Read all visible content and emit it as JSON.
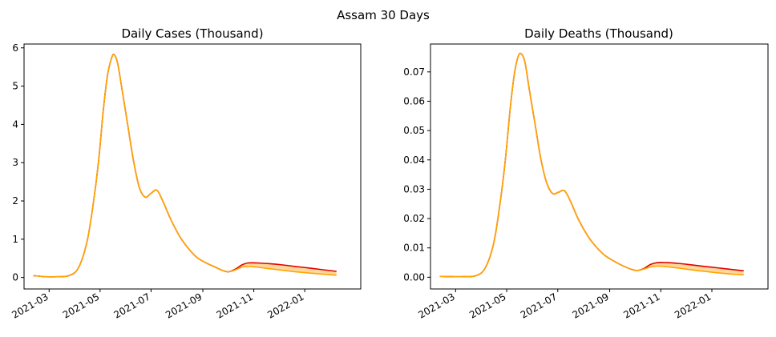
{
  "figure": {
    "suptitle": "Assam 30 Days"
  },
  "chart_data": [
    {
      "type": "line",
      "title": "Daily Cases (Thousand)",
      "xlabel": "",
      "ylabel": "",
      "x_type": "date",
      "xlim": [
        "2021-01-30",
        "2022-03-09"
      ],
      "ylim": [
        -0.3,
        6.1
      ],
      "yticks": [
        0,
        1,
        2,
        3,
        4,
        5,
        6
      ],
      "ytick_labels": [
        "0",
        "1",
        "2",
        "3",
        "4",
        "5",
        "6"
      ],
      "xticks": [
        "2021-03-01",
        "2021-05-01",
        "2021-07-01",
        "2021-09-01",
        "2021-11-01",
        "2022-01-01"
      ],
      "xtick_labels": [
        "2021-03",
        "2021-05",
        "2021-07",
        "2021-09",
        "2021-11",
        "2022-01"
      ],
      "grid": false,
      "band_color": "#ffd79a",
      "series": [
        {
          "color": "#e00000",
          "x": [
            "2021-02-10",
            "2021-02-25",
            "2021-03-10",
            "2021-03-25",
            "2021-04-05",
            "2021-04-15",
            "2021-04-22",
            "2021-04-29",
            "2021-05-05",
            "2021-05-10",
            "2021-05-15",
            "2021-05-18",
            "2021-05-22",
            "2021-05-27",
            "2021-06-03",
            "2021-06-10",
            "2021-06-17",
            "2021-06-24",
            "2021-07-01",
            "2021-07-08",
            "2021-07-15",
            "2021-07-25",
            "2021-08-05",
            "2021-08-15",
            "2021-08-25",
            "2021-09-05",
            "2021-09-15",
            "2021-09-25",
            "2021-10-02",
            "2021-10-10",
            "2021-10-18",
            "2021-10-25",
            "2021-11-05",
            "2021-11-20",
            "2021-12-05",
            "2021-12-20",
            "2022-01-05",
            "2022-01-20",
            "2022-02-08"
          ],
          "values": [
            0.05,
            0.02,
            0.02,
            0.05,
            0.25,
            0.9,
            1.8,
            3.0,
            4.4,
            5.3,
            5.75,
            5.82,
            5.6,
            4.95,
            4.0,
            3.05,
            2.35,
            2.1,
            2.2,
            2.28,
            2.0,
            1.5,
            1.05,
            0.75,
            0.52,
            0.38,
            0.28,
            0.18,
            0.15,
            0.22,
            0.33,
            0.38,
            0.38,
            0.36,
            0.33,
            0.29,
            0.25,
            0.21,
            0.16
          ]
        },
        {
          "color": "#ffa500",
          "x": [
            "2021-02-10",
            "2021-02-25",
            "2021-03-10",
            "2021-03-25",
            "2021-04-05",
            "2021-04-15",
            "2021-04-22",
            "2021-04-29",
            "2021-05-05",
            "2021-05-10",
            "2021-05-15",
            "2021-05-18",
            "2021-05-22",
            "2021-05-27",
            "2021-06-03",
            "2021-06-10",
            "2021-06-17",
            "2021-06-24",
            "2021-07-01",
            "2021-07-08",
            "2021-07-15",
            "2021-07-25",
            "2021-08-05",
            "2021-08-15",
            "2021-08-25",
            "2021-09-05",
            "2021-09-15",
            "2021-09-25",
            "2021-10-02",
            "2021-10-10",
            "2021-10-18",
            "2021-10-25",
            "2021-11-05",
            "2021-11-20",
            "2021-12-05",
            "2021-12-20",
            "2022-01-05",
            "2022-01-20",
            "2022-02-08"
          ],
          "values": [
            0.05,
            0.02,
            0.02,
            0.05,
            0.25,
            0.9,
            1.8,
            3.0,
            4.4,
            5.3,
            5.75,
            5.82,
            5.6,
            4.95,
            4.0,
            3.05,
            2.35,
            2.1,
            2.2,
            2.28,
            2.0,
            1.5,
            1.05,
            0.75,
            0.52,
            0.38,
            0.28,
            0.18,
            0.15,
            0.2,
            0.27,
            0.29,
            0.27,
            0.23,
            0.19,
            0.15,
            0.12,
            0.09,
            0.06
          ]
        }
      ]
    },
    {
      "type": "line",
      "title": "Daily Deaths (Thousand)",
      "xlabel": "",
      "ylabel": "",
      "x_type": "date",
      "xlim": [
        "2021-01-30",
        "2022-03-09"
      ],
      "ylim": [
        -0.004,
        0.0795
      ],
      "yticks": [
        0.0,
        0.01,
        0.02,
        0.03,
        0.04,
        0.05,
        0.06,
        0.07
      ],
      "ytick_labels": [
        "0.00",
        "0.01",
        "0.02",
        "0.03",
        "0.04",
        "0.05",
        "0.06",
        "0.07"
      ],
      "xticks": [
        "2021-03-01",
        "2021-05-01",
        "2021-07-01",
        "2021-09-01",
        "2021-11-01",
        "2022-01-01"
      ],
      "xtick_labels": [
        "2021-03",
        "2021-05",
        "2021-07",
        "2021-09",
        "2021-11",
        "2022-01"
      ],
      "grid": false,
      "band_color": "#ffd79a",
      "series": [
        {
          "color": "#e00000",
          "x": [
            "2021-02-10",
            "2021-02-25",
            "2021-03-10",
            "2021-03-25",
            "2021-04-05",
            "2021-04-15",
            "2021-04-22",
            "2021-04-29",
            "2021-05-05",
            "2021-05-10",
            "2021-05-15",
            "2021-05-19",
            "2021-05-23",
            "2021-05-28",
            "2021-06-04",
            "2021-06-11",
            "2021-06-18",
            "2021-06-25",
            "2021-07-02",
            "2021-07-09",
            "2021-07-16",
            "2021-07-26",
            "2021-08-06",
            "2021-08-16",
            "2021-08-26",
            "2021-09-06",
            "2021-09-16",
            "2021-09-26",
            "2021-10-04",
            "2021-10-12",
            "2021-10-20",
            "2021-10-28",
            "2021-11-08",
            "2021-11-23",
            "2021-12-08",
            "2021-12-23",
            "2022-01-08",
            "2022-01-23",
            "2022-02-08"
          ],
          "values": [
            0.0003,
            0.0002,
            0.0002,
            0.0005,
            0.003,
            0.011,
            0.023,
            0.039,
            0.057,
            0.069,
            0.0755,
            0.076,
            0.073,
            0.064,
            0.052,
            0.04,
            0.032,
            0.0285,
            0.029,
            0.0295,
            0.026,
            0.0195,
            0.014,
            0.0103,
            0.0075,
            0.0055,
            0.004,
            0.0028,
            0.0023,
            0.003,
            0.0044,
            0.005,
            0.005,
            0.0047,
            0.0042,
            0.0037,
            0.0032,
            0.0027,
            0.0022
          ]
        },
        {
          "color": "#ffa500",
          "x": [
            "2021-02-10",
            "2021-02-25",
            "2021-03-10",
            "2021-03-25",
            "2021-04-05",
            "2021-04-15",
            "2021-04-22",
            "2021-04-29",
            "2021-05-05",
            "2021-05-10",
            "2021-05-15",
            "2021-05-19",
            "2021-05-23",
            "2021-05-28",
            "2021-06-04",
            "2021-06-11",
            "2021-06-18",
            "2021-06-25",
            "2021-07-02",
            "2021-07-09",
            "2021-07-16",
            "2021-07-26",
            "2021-08-06",
            "2021-08-16",
            "2021-08-26",
            "2021-09-06",
            "2021-09-16",
            "2021-09-26",
            "2021-10-04",
            "2021-10-12",
            "2021-10-20",
            "2021-10-28",
            "2021-11-08",
            "2021-11-23",
            "2021-12-08",
            "2021-12-23",
            "2022-01-08",
            "2022-01-23",
            "2022-02-08"
          ],
          "values": [
            0.0003,
            0.0002,
            0.0002,
            0.0005,
            0.003,
            0.011,
            0.023,
            0.039,
            0.057,
            0.069,
            0.0755,
            0.076,
            0.073,
            0.064,
            0.052,
            0.04,
            0.032,
            0.0285,
            0.029,
            0.0295,
            0.026,
            0.0195,
            0.014,
            0.0103,
            0.0075,
            0.0055,
            0.004,
            0.0028,
            0.0023,
            0.0028,
            0.0035,
            0.0038,
            0.0036,
            0.0031,
            0.0025,
            0.002,
            0.0015,
            0.0011,
            0.0008
          ]
        }
      ]
    }
  ]
}
